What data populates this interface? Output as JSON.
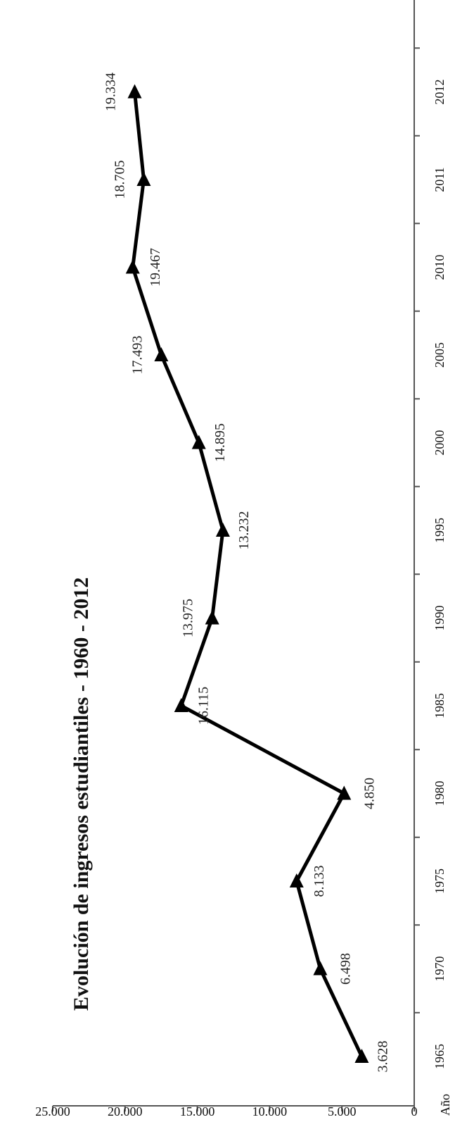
{
  "chart_data": {
    "type": "line",
    "title": "Evolución de ingresos estudiantiles - 1960 - 2012",
    "xlabel": "Año",
    "ylabel": "",
    "x": [
      1965,
      1970,
      1975,
      1980,
      1985,
      1990,
      1995,
      2000,
      2005,
      2010,
      2011,
      2012
    ],
    "x_tick_labels": [
      "1965",
      "1970",
      "1975",
      "1980",
      "1985",
      "1990",
      "1995",
      "2000",
      "2005",
      "2010",
      "2011",
      "2012"
    ],
    "series": [
      {
        "name": "",
        "values": [
          3628,
          6498,
          8133,
          4850,
          16115,
          13975,
          13232,
          14895,
          17493,
          19467,
          18705,
          19334
        ],
        "labels": [
          "3.628",
          "6.498",
          "8.133",
          "4.850",
          "16.115",
          "13.975",
          "13.232",
          "14.895",
          "17.493",
          "19.467",
          "18.705",
          "19.334"
        ]
      }
    ],
    "y_tick_values": [
      0,
      5000,
      10000,
      15000,
      20000,
      25000
    ],
    "y_tick_labels": [
      "0",
      "5.000",
      "10.000",
      "15.000",
      "20.000",
      "25.000"
    ],
    "ylim": [
      0,
      25000
    ],
    "grid": false,
    "legend": "none",
    "line_color": "#000000",
    "marker": "triangle"
  }
}
